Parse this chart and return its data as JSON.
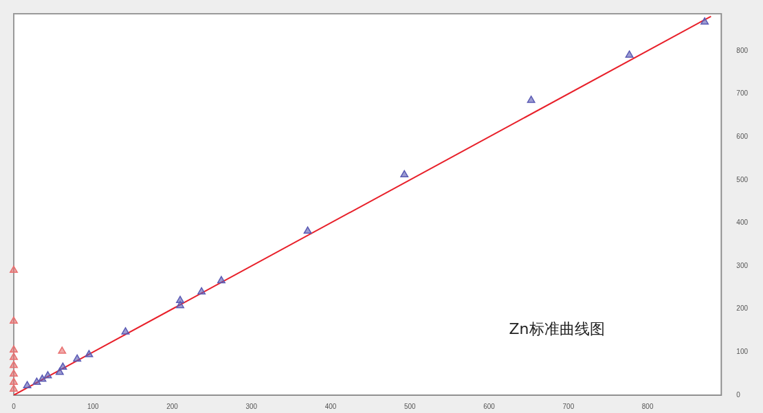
{
  "chart_data": {
    "type": "scatter",
    "annotations": [
      "Zn标准曲线图"
    ],
    "xlim": [
      0,
      893
    ],
    "xticks": [
      0,
      100,
      200,
      300,
      400,
      500,
      600,
      700,
      800
    ],
    "ylim": [
      0,
      886
    ],
    "yticks": [
      0,
      100,
      200,
      300,
      400,
      500,
      600,
      700,
      800
    ],
    "grid": false,
    "legend": false,
    "marker": "triangle",
    "series": [
      {
        "type": "line",
        "color": "#e8202a",
        "x": [
          0,
          880
        ],
        "values": [
          0,
          880
        ],
        "marker": "none",
        "line_style": "solid"
      },
      {
        "color": "#5a5ab4",
        "x": [
          872,
          777,
          653,
          493,
          371,
          262,
          237,
          210,
          210,
          141,
          95,
          80,
          62,
          58,
          43,
          36,
          29,
          17
        ],
        "values": [
          867,
          790,
          685,
          512,
          381,
          266,
          240,
          220,
          208,
          147,
          94,
          84,
          65,
          53,
          45,
          37,
          30,
          22
        ]
      },
      {
        "color": "#e87070",
        "x": [
          0,
          0,
          0,
          0,
          0,
          0,
          0,
          0,
          61
        ],
        "values": [
          290,
          172,
          105,
          88,
          69,
          49,
          30,
          14,
          102
        ]
      }
    ]
  }
}
